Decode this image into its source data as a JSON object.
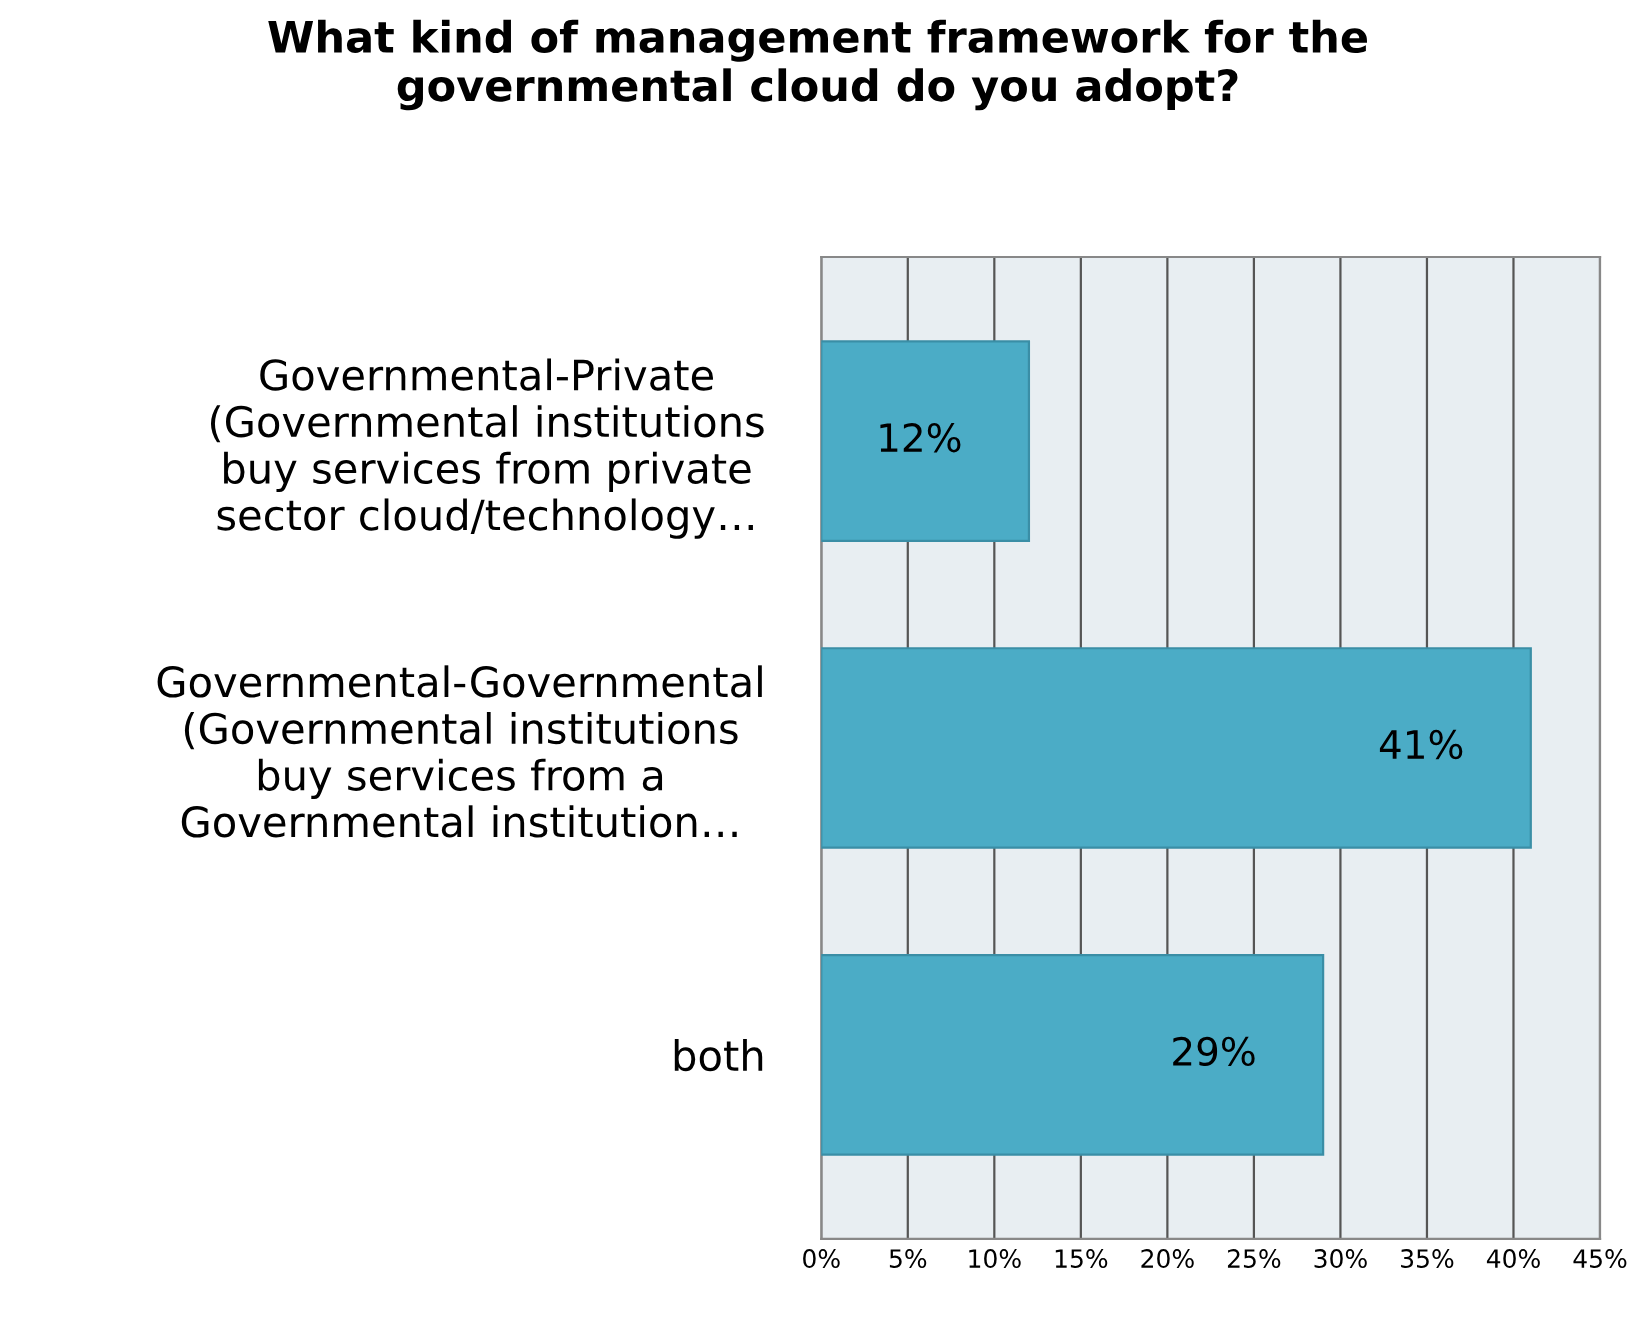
{
  "chart_data": {
    "type": "bar",
    "orientation": "horizontal",
    "title": "What kind of management framework for the\ngovernmental cloud do you adopt?",
    "categories": [
      "Governmental-Private\n(Governmental institutions\nbuy services from private\nsector cloud/technology…",
      "Governmental-Governmental\n(Governmental institutions\nbuy services from a\nGovernmental institution…",
      "both"
    ],
    "values": [
      12,
      41,
      29
    ],
    "value_labels": [
      "12%",
      "41%",
      "29%"
    ],
    "color": "#4bacc6",
    "xlim": [
      0,
      45
    ],
    "xticks": [
      {
        "value": 0,
        "label": "0%"
      },
      {
        "value": 5,
        "label": "5%"
      },
      {
        "value": 10,
        "label": "10%"
      },
      {
        "value": 15,
        "label": "15%"
      },
      {
        "value": 20,
        "label": "20%"
      },
      {
        "value": 25,
        "label": "25%"
      },
      {
        "value": 30,
        "label": "30%"
      },
      {
        "value": 35,
        "label": "35%"
      },
      {
        "value": 40,
        "label": "40%"
      },
      {
        "value": 45,
        "label": "45%"
      }
    ],
    "grid": "x",
    "legend": false
  }
}
